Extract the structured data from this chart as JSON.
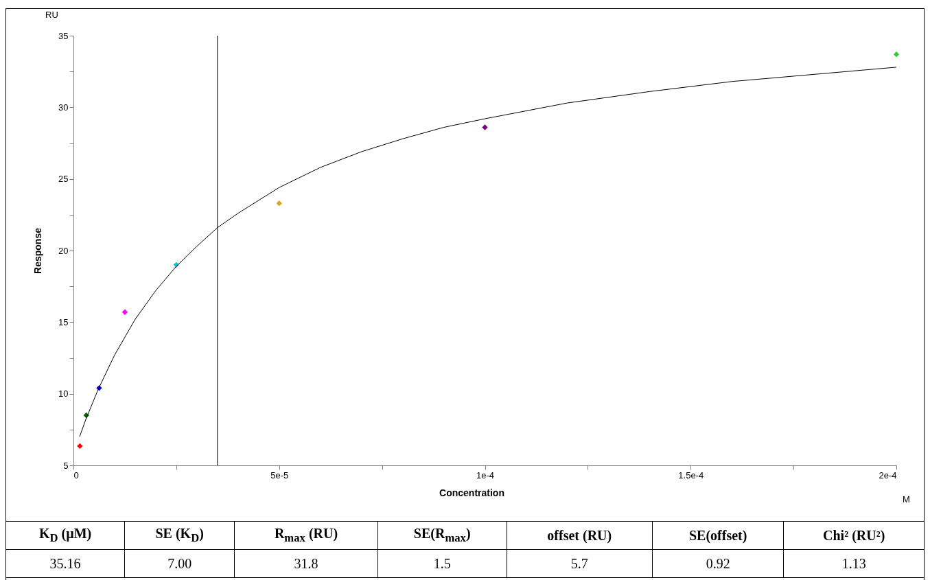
{
  "chart_data": {
    "type": "scatter",
    "xlabel": "Concentration",
    "ylabel": "Response",
    "xlim": [
      0,
      0.0002
    ],
    "ylim": [
      5,
      35
    ],
    "xticks": [
      0,
      {
        "value": 2.5e-05,
        "label": null
      },
      {
        "value": 5e-05,
        "label": "5e-5"
      },
      {
        "value": 7.5e-05,
        "label": null
      },
      {
        "value": 0.0001,
        "label": "1e-4"
      },
      {
        "value": 0.000125,
        "label": null
      },
      {
        "value": 0.00015,
        "label": "1.5e-4"
      },
      {
        "value": 0.000175,
        "label": null
      },
      {
        "value": 0.0002,
        "label": "2e-4"
      }
    ],
    "yticks": [
      5,
      {
        "value": 7.5,
        "label": null
      },
      10,
      {
        "value": 12.5,
        "label": null
      },
      15,
      {
        "value": 17.5,
        "label": null
      },
      20,
      {
        "value": 22.5,
        "label": null
      },
      25,
      {
        "value": 27.5,
        "label": null
      },
      30,
      {
        "value": 32.5,
        "label": null
      },
      35
    ],
    "series": [
      {
        "marker": "diamond",
        "x": [
          1.5625e-06,
          3.125e-06,
          6.25e-06,
          1.25e-05,
          2.5e-05,
          5e-05,
          0.0001,
          0.0002
        ],
        "values": [
          6.35,
          8.5,
          10.4,
          15.7,
          19.0,
          23.3,
          28.6,
          33.7
        ],
        "colors": [
          "#ff0000",
          "#006400",
          "#0000ff",
          "#ff00ff",
          "#00cccc",
          "#daa520",
          "#800080",
          "#33cc33"
        ]
      },
      {
        "type": "line",
        "color": "#000000",
        "x": [
          1.5e-06,
          3e-06,
          6e-06,
          1e-05,
          1.5e-05,
          2e-05,
          2.5e-05,
          3e-05,
          3.5e-05,
          4e-05,
          5e-05,
          6e-05,
          7e-05,
          8e-05,
          9e-05,
          0.0001,
          0.00012,
          0.00014,
          0.00016,
          0.00018,
          0.0002
        ],
        "values": [
          7.0,
          8.2,
          10.3,
          12.7,
          15.2,
          17.2,
          18.9,
          20.3,
          21.6,
          22.6,
          24.4,
          25.8,
          26.9,
          27.8,
          28.6,
          29.2,
          30.3,
          31.1,
          31.8,
          32.3,
          32.8
        ]
      }
    ],
    "ref_lines": [
      {
        "axis": "x",
        "value": 3.5e-05,
        "color": "#000000"
      }
    ],
    "annotations": [
      "RU",
      "M",
      "K$_{D}$ (µM)",
      "SE (K$_{D}$)",
      "R$_{max}$ (RU)",
      "SE(R$_{max}$)",
      "offset (RU)",
      "SE(offset)",
      "Chi² (RU²)",
      "35.16",
      "7.00",
      "31.8",
      "1.5",
      "5.7",
      "0.92",
      "1.13"
    ]
  }
}
